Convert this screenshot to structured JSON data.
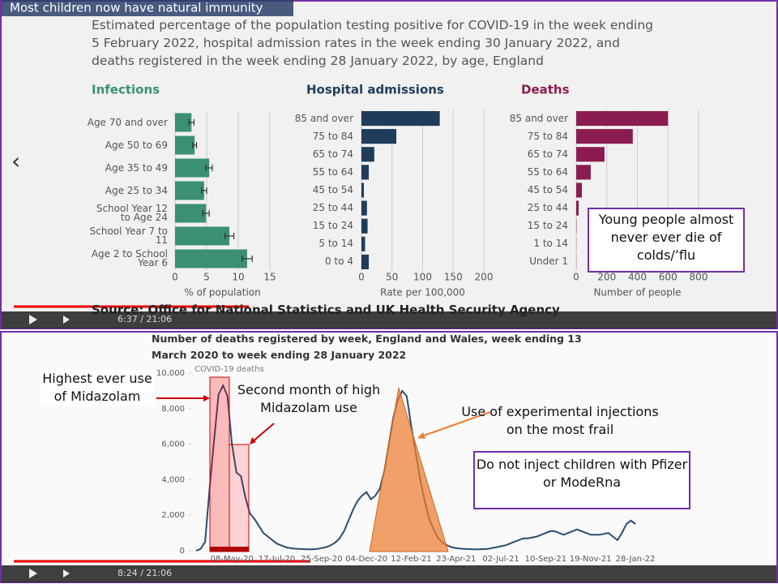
{
  "video": {
    "top": {
      "title": "Most children now have natural immunity",
      "description": "Estimated percentage of the population testing positive for COVID-19 in the week ending 5 February 2022, hospital admission rates in the week ending 30 January 2022, and deaths registered in the week ending 28 January 2022, by age, England",
      "source": "Source: Office for National Statistics and UK Health Security Agency",
      "time": "6:37 / 21:06",
      "note": "Young people almost never ever die of colds/’flu"
    },
    "bottom": {
      "time": "8:24 / 21:06",
      "notes": [
        "Highest ever use of Midazolam",
        "Second month of high Midazolam use",
        "Use of experimental injections on the most frail",
        "Do not inject children with Pfizer or ModeRna"
      ]
    }
  },
  "chart_data": [
    {
      "type": "bar",
      "orientation": "horizontal",
      "title": "Infections",
      "x_label": "% of population",
      "color": "#3a8f75",
      "categories": [
        "Age 70 and over",
        "Age 50 to 69",
        "Age 35 to 49",
        "Age 25 to 34",
        "School Year 12 to Age 24",
        "School Year 7 to 11",
        "Age 2 to School Year 6"
      ],
      "values": [
        2.6,
        3.1,
        5.4,
        4.6,
        4.9,
        8.6,
        11.4
      ],
      "errors": [
        0.4,
        0.3,
        0.5,
        0.4,
        0.5,
        0.7,
        0.8
      ],
      "xlim": [
        0,
        15
      ],
      "xticks": [
        0,
        5,
        10,
        15
      ],
      "grid": true
    },
    {
      "type": "bar",
      "orientation": "horizontal",
      "title": "Hospital admissions",
      "x_label": "Rate per 100,000",
      "color": "#1f3d5a",
      "categories": [
        "85 and over",
        "75 to 84",
        "65 to 74",
        "55 to 64",
        "45 to 54",
        "25 to 44",
        "15 to 24",
        "5 to 14",
        "0 to 4"
      ],
      "values": [
        128,
        57,
        21,
        12,
        4,
        9,
        10,
        6,
        12
      ],
      "xlim": [
        0,
        200
      ],
      "xticks": [
        0,
        50,
        100,
        150,
        200
      ],
      "grid": true
    },
    {
      "type": "bar",
      "orientation": "horizontal",
      "title": "Deaths",
      "x_label": "Number of people",
      "color": "#8b1c4f",
      "categories": [
        "85 and over",
        "75 to 84",
        "65 to 74",
        "55 to 64",
        "45 to 54",
        "25 to 44",
        "15 to 24",
        "1 to 14",
        "Under 1"
      ],
      "values": [
        600,
        370,
        185,
        95,
        37,
        16,
        2,
        1,
        1
      ],
      "xlim": [
        0,
        800
      ],
      "xticks": [
        0,
        200,
        400,
        600,
        800
      ],
      "grid": true
    },
    {
      "type": "line",
      "title": "Number of deaths registered by week, England and Wales, week ending 13 March 2020 to week ending 28 January 2022",
      "categories": [
        null,
        null,
        null,
        null,
        null,
        null,
        null,
        null,
        "08-May-20",
        null,
        null,
        null,
        null,
        null,
        null,
        null,
        null,
        null,
        "17-Jul-20",
        null,
        null,
        null,
        null,
        null,
        null,
        null,
        null,
        null,
        "25-Sep-20",
        null,
        null,
        null,
        null,
        null,
        null,
        null,
        null,
        null,
        "04-Dec-20",
        null,
        null,
        null,
        null,
        null,
        null,
        null,
        null,
        null,
        "12-Feb-21",
        null,
        null,
        null,
        null,
        null,
        null,
        null,
        null,
        null,
        "23-Apr-21",
        null,
        null,
        null,
        null,
        null,
        null,
        null,
        null,
        null,
        "02-Jul-21",
        null,
        null,
        null,
        null,
        null,
        null,
        null,
        null,
        null,
        "10-Sep-21",
        null,
        null,
        null,
        null,
        null,
        null,
        null,
        null,
        null,
        "19-Nov-21",
        null,
        null,
        null,
        null,
        null,
        null,
        null,
        null,
        null,
        "28-Jan-22"
      ],
      "series": [
        {
          "name": "COVID-19 deaths",
          "color": "#2b4c6f",
          "values": [
            5,
            100,
            500,
            3500,
            6200,
            8800,
            9300,
            8700,
            6000,
            4400,
            4200,
            3000,
            2100,
            1800,
            1400,
            1000,
            800,
            600,
            400,
            300,
            200,
            150,
            120,
            100,
            90,
            80,
            80,
            100,
            150,
            200,
            300,
            450,
            700,
            1100,
            1700,
            2300,
            2800,
            3100,
            3300,
            2900,
            3100,
            3500,
            4500,
            6000,
            7500,
            8500,
            9000,
            8700,
            7000,
            5500,
            4000,
            2800,
            1800,
            1200,
            700,
            450,
            300,
            200,
            150,
            120,
            100,
            90,
            80,
            80,
            90,
            100,
            150,
            200,
            250,
            300,
            400,
            500,
            600,
            700,
            700,
            750,
            800,
            900,
            1000,
            1100,
            1100,
            1000,
            900,
            1000,
            1100,
            1200,
            1100,
            1000,
            900,
            900,
            900,
            950,
            1000,
            800,
            600,
            1000,
            1500,
            1700,
            1500
          ]
        }
      ],
      "ylim": [
        0,
        10000
      ],
      "yticks": [
        0,
        {
          "value": 2000,
          "label": "2,000"
        },
        {
          "value": 4000,
          "label": "4,000"
        },
        {
          "value": 6000,
          "label": "6,000"
        },
        {
          "value": 8000,
          "label": "8,000"
        },
        {
          "value": 10000,
          "label": "10,000"
        }
      ],
      "grid": false
    }
  ]
}
